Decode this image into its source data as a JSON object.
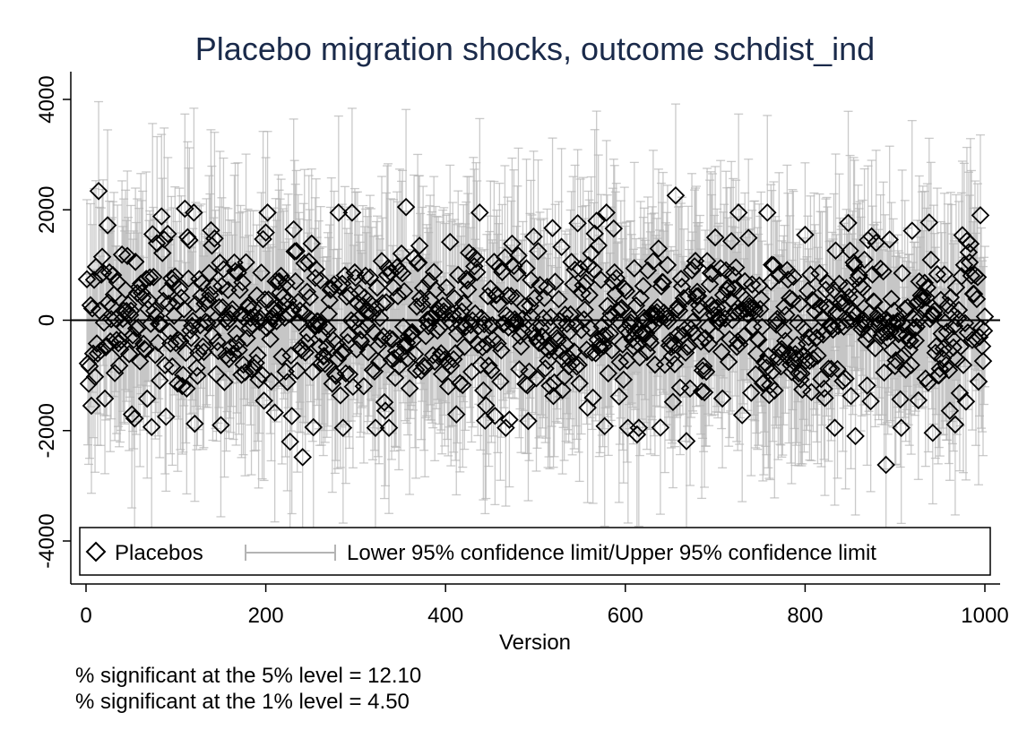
{
  "chart_data": {
    "type": "scatter",
    "title": "Placebo migration shocks, outcome schdist_ind",
    "xlabel": "Version",
    "ylabel": "",
    "xlim": [
      0,
      1000
    ],
    "ylim": [
      -4500,
      4500
    ],
    "xticks": [
      0,
      200,
      400,
      600,
      800,
      1000
    ],
    "xtick_labels": [
      "0",
      "200",
      "400",
      "600",
      "800",
      "1000"
    ],
    "yticks": [
      -4000,
      -2000,
      0,
      2000,
      4000
    ],
    "ytick_labels": [
      "-4000",
      "-2000",
      "0",
      "2000",
      "4000"
    ],
    "reference_line_y": 0,
    "grid": false,
    "legend_position": "bottom",
    "legend": [
      "Placebos",
      "Lower 95% confidence limit/Upper 95% confidence limit"
    ],
    "series": [
      {
        "name": "Placebos",
        "marker": "diamond",
        "n": 1000,
        "x_range": [
          1,
          1000
        ],
        "summary_sd": 800,
        "points": [
          {
            "x": 14,
            "y": 2340
          },
          {
            "x": 24,
            "y": 1720
          },
          {
            "x": 84,
            "y": 1880
          },
          {
            "x": 110,
            "y": 2020
          },
          {
            "x": 143,
            "y": 1480
          },
          {
            "x": 202,
            "y": 1950
          },
          {
            "x": 356,
            "y": 2050
          },
          {
            "x": 568,
            "y": 1800
          },
          {
            "x": 656,
            "y": 2260
          },
          {
            "x": 995,
            "y": 1900
          },
          {
            "x": 919,
            "y": 1620
          },
          {
            "x": 975,
            "y": 1540
          },
          {
            "x": 227,
            "y": -2200
          },
          {
            "x": 241,
            "y": -2480
          },
          {
            "x": 613,
            "y": -2070
          },
          {
            "x": 668,
            "y": -2190
          },
          {
            "x": 856,
            "y": -2100
          },
          {
            "x": 890,
            "y": -2620
          },
          {
            "x": 942,
            "y": -2040
          },
          {
            "x": 54,
            "y": -1780
          },
          {
            "x": 150,
            "y": -1900
          },
          {
            "x": 333,
            "y": -1640
          },
          {
            "x": 444,
            "y": -1820
          },
          {
            "x": 3,
            "y": -1150
          },
          {
            "x": 98,
            "y": 80
          },
          {
            "x": 500,
            "y": -300
          },
          {
            "x": 750,
            "y": 200
          }
        ]
      },
      {
        "name": "Lower 95% confidence limit/Upper 95% confidence limit",
        "type": "range-cap",
        "halfwidth_typical": 1500
      }
    ]
  },
  "notes": {
    "line1": "% significant at the 5% level = 12.10",
    "line2": "% significant at the 1% level = 4.50"
  },
  "colors": {
    "title": "#1a2a4a",
    "marker": "#000000",
    "ci": "#b4b4b4",
    "axis": "#000000",
    "background": "#ffffff"
  }
}
